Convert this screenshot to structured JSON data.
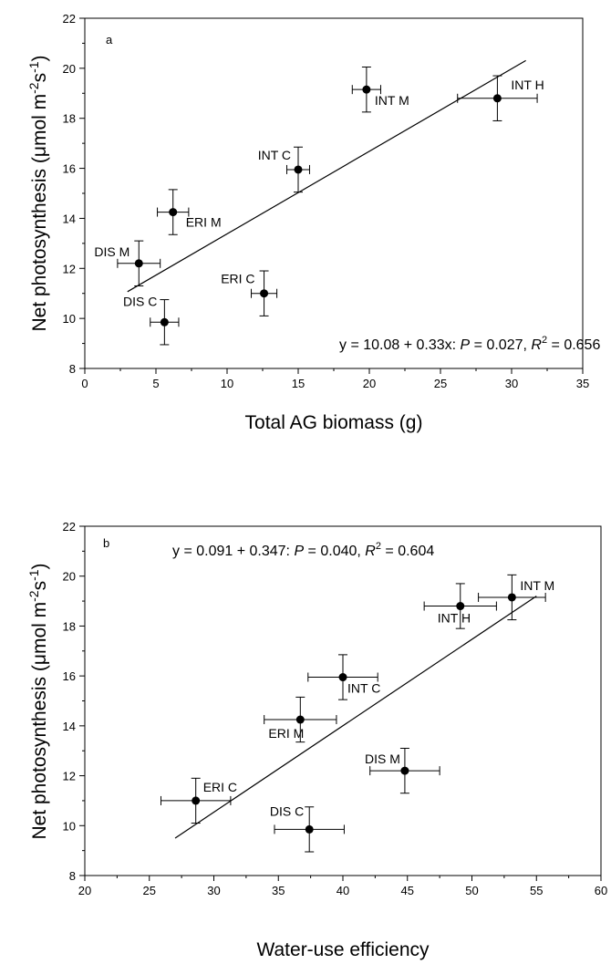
{
  "chart_data": [
    {
      "type": "scatter",
      "panel_label": "a",
      "xlabel": "Total AG biomass (g)",
      "ylabel": {
        "prefix": "Net photosynthesis (",
        "unit_main": "μmol m",
        "unit_exp1": "-2",
        "unit_mid": "s",
        "unit_exp2": "-1",
        "suffix": ")"
      },
      "xlim": [
        0,
        35
      ],
      "ylim": [
        8,
        22
      ],
      "xticks": [
        0,
        5,
        10,
        15,
        20,
        25,
        30,
        35
      ],
      "yticks": [
        8,
        10,
        12,
        14,
        16,
        18,
        20,
        22
      ],
      "points": [
        {
          "label": "DIS C",
          "x": 5.6,
          "y": 9.85,
          "xerr": 1.0,
          "yerr": 0.9
        },
        {
          "label": "DIS M",
          "x": 3.8,
          "y": 12.2,
          "xerr": 1.5,
          "yerr": 0.9
        },
        {
          "label": "ERI C",
          "x": 12.6,
          "y": 11.0,
          "xerr": 0.9,
          "yerr": 0.9
        },
        {
          "label": "ERI M",
          "x": 6.2,
          "y": 14.25,
          "xerr": 1.1,
          "yerr": 0.9
        },
        {
          "label": "INT C",
          "x": 15.0,
          "y": 15.95,
          "xerr": 0.8,
          "yerr": 0.9
        },
        {
          "label": "INT M",
          "x": 19.8,
          "y": 19.15,
          "xerr": 1.0,
          "yerr": 0.9
        },
        {
          "label": "INT H",
          "x": 29.0,
          "y": 18.8,
          "xerr": 2.8,
          "yerr": 0.9
        }
      ],
      "fit_line": {
        "x": [
          3,
          31
        ],
        "y": [
          11.07,
          20.31
        ]
      },
      "equation": {
        "lead": "y = 10.08 + 0.33x: ",
        "p_symbol": "P",
        "p_value": " = 0.027, ",
        "r_symbol": "R",
        "r_exp": "2",
        "r_value": " = 0.656"
      }
    },
    {
      "type": "scatter",
      "panel_label": "b",
      "xlabel": "Water-use efficiency",
      "ylabel": {
        "prefix": "Net photosynthesis (",
        "unit_main": "μmol m",
        "unit_exp1": "-2",
        "unit_mid": "s",
        "unit_exp2": "-1",
        "suffix": ")"
      },
      "xlim": [
        20,
        60
      ],
      "ylim": [
        8,
        22
      ],
      "xticks": [
        20,
        25,
        30,
        35,
        40,
        45,
        50,
        55,
        60
      ],
      "yticks": [
        8,
        10,
        12,
        14,
        16,
        18,
        20,
        22
      ],
      "points": [
        {
          "label": "ERI C",
          "x": 28.6,
          "y": 11.0,
          "xerr": 2.7,
          "yerr": 0.9
        },
        {
          "label": "DIS C",
          "x": 37.4,
          "y": 9.85,
          "xerr": 2.7,
          "yerr": 0.9
        },
        {
          "label": "ERI M",
          "x": 36.7,
          "y": 14.25,
          "xerr": 2.8,
          "yerr": 0.9
        },
        {
          "label": "INT C",
          "x": 40.0,
          "y": 15.95,
          "xerr": 2.7,
          "yerr": 0.9
        },
        {
          "label": "DIS M",
          "x": 44.8,
          "y": 12.2,
          "xerr": 2.7,
          "yerr": 0.9
        },
        {
          "label": "INT H",
          "x": 49.1,
          "y": 18.8,
          "xerr": 2.8,
          "yerr": 0.9
        },
        {
          "label": "INT M",
          "x": 53.1,
          "y": 19.15,
          "xerr": 2.6,
          "yerr": 0.9
        }
      ],
      "fit_line": {
        "x": [
          27,
          55
        ],
        "y": [
          9.5,
          19.2
        ]
      },
      "equation": {
        "lead": "y = 0.091 + 0.347: ",
        "p_symbol": "P",
        "p_value": " = 0.040, ",
        "r_symbol": "R",
        "r_exp": "2",
        "r_value": " = 0.604"
      }
    }
  ]
}
